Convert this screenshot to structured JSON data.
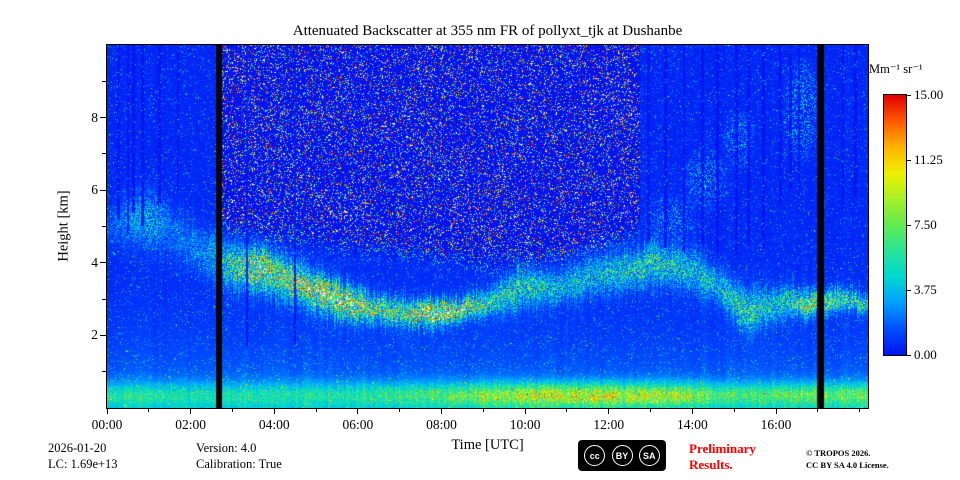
{
  "title": "Attenuated Backscatter at 355 nm FR of pollyxt_tjk at Dushanbe",
  "footer": {
    "date": "2026-01-20",
    "lidar_constant": "LC: 1.69e+13",
    "version": "Version: 4.0",
    "calibration": "Calibration: True",
    "preliminary_line1": "Preliminary",
    "preliminary_line2": "Results.",
    "preliminary_color": "#ff0000",
    "copyright": "© TROPOS 2026.",
    "license": "CC BY SA 4.0 License.",
    "badge": {
      "background": "#000000",
      "icons": [
        {
          "name": "cc",
          "label": "cc"
        },
        {
          "name": "by",
          "label": "BY"
        },
        {
          "name": "sa",
          "label": "SA"
        }
      ]
    }
  },
  "chart_data": {
    "type": "heatmap",
    "title": "Attenuated Backscatter at 355 nm FR of pollyxt_tjk at Dushanbe",
    "x_axis": {
      "label": "Time [UTC]",
      "range_hours": [
        0,
        18.2
      ],
      "minor_tick_every_hours": 1,
      "major_ticks": [
        {
          "hour": 0,
          "label": "00:00"
        },
        {
          "hour": 2,
          "label": "02:00"
        },
        {
          "hour": 4,
          "label": "04:00"
        },
        {
          "hour": 6,
          "label": "06:00"
        },
        {
          "hour": 8,
          "label": "08:00"
        },
        {
          "hour": 10,
          "label": "10:00"
        },
        {
          "hour": 12,
          "label": "12:00"
        },
        {
          "hour": 14,
          "label": "14:00"
        },
        {
          "hour": 16,
          "label": "16:00"
        }
      ]
    },
    "y_axis": {
      "label": "Height [km]",
      "range_km": [
        0,
        10
      ],
      "minor_tick_every_km": 1,
      "major_ticks": [
        {
          "km": 2,
          "label": "2"
        },
        {
          "km": 4,
          "label": "4"
        },
        {
          "km": 6,
          "label": "6"
        },
        {
          "km": 8,
          "label": "8"
        }
      ]
    },
    "colorbar": {
      "label": "Mm⁻¹ sr⁻¹",
      "min": 0,
      "max": 15,
      "overflow_color": "#ffffff",
      "ticks": [
        {
          "value": 15,
          "label": "15.00"
        },
        {
          "value": 11.25,
          "label": "11.25"
        },
        {
          "value": 7.5,
          "label": "7.50"
        },
        {
          "value": 3.75,
          "label": "3.75"
        },
        {
          "value": 0,
          "label": "0.00"
        }
      ]
    },
    "colormap_anchors": [
      [
        0.0,
        "#0014f0"
      ],
      [
        0.1,
        "#0050ff"
      ],
      [
        0.2,
        "#00a0ff"
      ],
      [
        0.3,
        "#00d8d0"
      ],
      [
        0.4,
        "#28e49a"
      ],
      [
        0.5,
        "#62ea52"
      ],
      [
        0.6,
        "#a8f028"
      ],
      [
        0.7,
        "#eef000"
      ],
      [
        0.8,
        "#ffb400"
      ],
      [
        0.9,
        "#ff5a00"
      ],
      [
        1.0,
        "#e10000"
      ]
    ],
    "background_profile": {
      "offset": 0.45,
      "surface_value": 2.6,
      "scale_height_km": 1.3
    },
    "surface_layer": {
      "center_km": 0.35,
      "width_km": 0.33,
      "amplitude_points": [
        [
          0,
          3.2
        ],
        [
          2,
          2.8
        ],
        [
          4,
          2.8
        ],
        [
          6,
          3.2
        ],
        [
          8,
          4.0
        ],
        [
          9,
          5.5
        ],
        [
          10,
          6.5
        ],
        [
          11,
          6.8
        ],
        [
          12,
          6.8
        ],
        [
          13,
          6.5
        ],
        [
          14,
          5.5
        ],
        [
          15,
          3.8
        ],
        [
          16,
          4.2
        ],
        [
          17,
          4.8
        ],
        [
          18.2,
          4.8
        ]
      ]
    },
    "aerosol_layer_points": [
      [
        0.0,
        4.4,
        5.6,
        1.2
      ],
      [
        0.7,
        4.2,
        6.2,
        2.2
      ],
      [
        1.5,
        4.0,
        5.8,
        1.6
      ],
      [
        2.3,
        3.6,
        5.0,
        2.2
      ],
      [
        3.0,
        3.2,
        4.6,
        6.0
      ],
      [
        3.6,
        3.2,
        4.5,
        9.5
      ],
      [
        4.3,
        2.9,
        4.2,
        8.0
      ],
      [
        5.0,
        2.6,
        3.8,
        10.0
      ],
      [
        5.6,
        2.45,
        3.5,
        11.0
      ],
      [
        6.3,
        2.3,
        3.2,
        8.0
      ],
      [
        7.0,
        2.2,
        3.0,
        7.0
      ],
      [
        7.8,
        2.25,
        3.0,
        11.0
      ],
      [
        8.4,
        2.35,
        3.05,
        9.5
      ],
      [
        9.1,
        2.5,
        3.3,
        5.5
      ],
      [
        10.0,
        2.7,
        4.0,
        5.0
      ],
      [
        10.8,
        2.8,
        3.8,
        3.8
      ],
      [
        11.6,
        3.0,
        4.2,
        4.0
      ],
      [
        12.4,
        3.2,
        4.4,
        5.0
      ],
      [
        13.1,
        3.3,
        4.6,
        5.5
      ],
      [
        13.9,
        3.2,
        4.5,
        4.5
      ],
      [
        14.6,
        2.8,
        4.0,
        3.8
      ],
      [
        15.3,
        2.0,
        3.3,
        5.5
      ],
      [
        16.0,
        2.3,
        3.4,
        4.0
      ],
      [
        16.8,
        2.5,
        3.3,
        7.5
      ],
      [
        17.4,
        2.6,
        3.3,
        6.5
      ],
      [
        18.2,
        2.6,
        3.2,
        5.0
      ]
    ],
    "daytime_noise_region": {
      "t_start": 2.76,
      "t_end": 12.75,
      "speckle_density": 0.16,
      "bottom_km_points": [
        [
          2.76,
          4.8
        ],
        [
          3.5,
          4.7
        ],
        [
          5,
          4.4
        ],
        [
          6,
          4.3
        ],
        [
          7,
          4.15
        ],
        [
          8,
          4.0
        ],
        [
          9,
          3.85
        ],
        [
          10,
          3.9
        ],
        [
          11,
          4.1
        ],
        [
          12,
          4.35
        ],
        [
          12.75,
          4.9
        ]
      ]
    },
    "blackout_bars_hours": [
      [
        2.6,
        2.76
      ],
      [
        16.98,
        17.15
      ]
    ],
    "dark_stripes": [
      [
        0.28,
        5.2
      ],
      [
        0.5,
        4.8
      ],
      [
        0.63,
        5.4
      ],
      [
        0.85,
        5.0
      ],
      [
        1.25,
        5.6
      ],
      [
        1.7,
        6.0
      ],
      [
        3.35,
        1.7
      ],
      [
        4.5,
        1.7
      ],
      [
        12.95,
        4.6
      ],
      [
        13.35,
        4.4
      ],
      [
        13.8,
        4.3
      ],
      [
        14.25,
        4.5
      ],
      [
        14.6,
        4.3
      ],
      [
        15.05,
        4.2
      ],
      [
        15.35,
        4.5
      ],
      [
        15.7,
        4.3
      ],
      [
        16.1,
        5.6
      ],
      [
        16.35,
        6.0
      ],
      [
        16.55,
        5.8
      ],
      [
        17.6,
        5.4
      ],
      [
        17.9,
        5.8
      ]
    ],
    "speckle_patches": [
      [
        1.0,
        5.3,
        0.55,
        1.0,
        3.0
      ],
      [
        13.5,
        5.2,
        0.7,
        0.8,
        2.5
      ],
      [
        14.3,
        6.3,
        0.6,
        1.0,
        3.0
      ],
      [
        15.1,
        7.4,
        0.45,
        0.9,
        3.0
      ],
      [
        16.6,
        8.2,
        0.5,
        1.6,
        3.5
      ]
    ]
  }
}
